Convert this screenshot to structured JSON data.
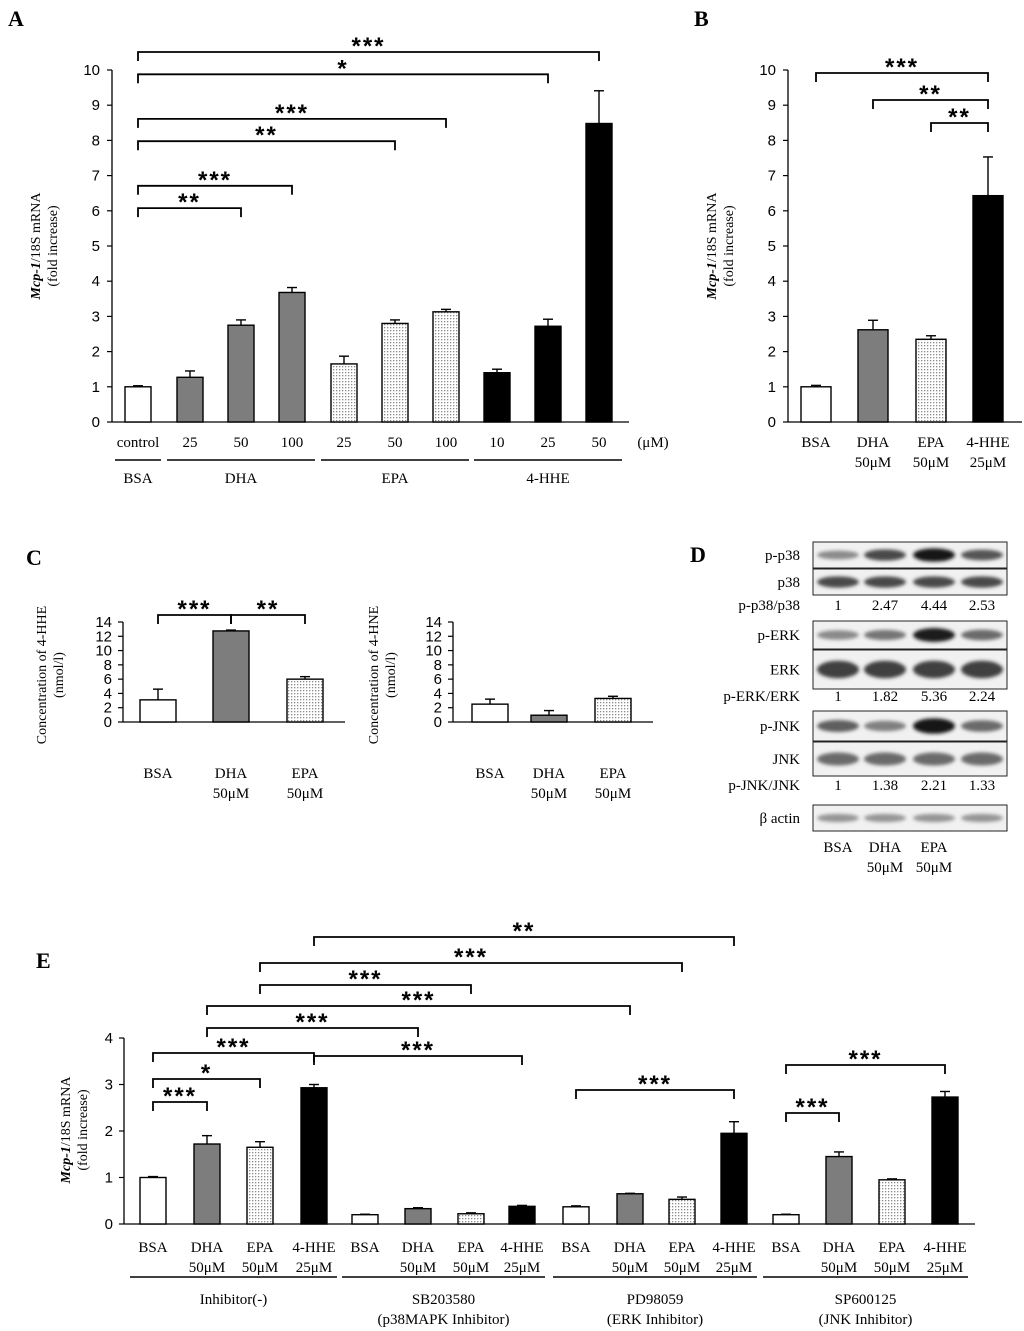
{
  "figure": {
    "panel_labels": [
      "A",
      "B",
      "C",
      "D",
      "E"
    ],
    "ylabel_mcp": [
      "Mcp-1",
      "/18S mRNA",
      "(fold increase)"
    ],
    "unit_uM": "(μM)"
  },
  "chart_data": [
    {
      "id": "A",
      "type": "bar",
      "ylim": [
        0,
        10
      ],
      "yticks": [
        0,
        1,
        2,
        3,
        4,
        5,
        6,
        7,
        8,
        9,
        10
      ],
      "categories": [
        "control",
        "25",
        "50",
        "100",
        "25",
        "50",
        "100",
        "10",
        "25",
        "50"
      ],
      "values": [
        1.0,
        1.27,
        2.75,
        3.68,
        1.65,
        2.8,
        3.13,
        1.4,
        2.72,
        8.48
      ],
      "errors": [
        0.03,
        0.18,
        0.15,
        0.14,
        0.22,
        0.1,
        0.07,
        0.1,
        0.2,
        0.93
      ],
      "fills": [
        "white",
        "gray",
        "gray",
        "gray",
        "dot",
        "dot",
        "dot",
        "black",
        "black",
        "black"
      ],
      "groups": [
        {
          "label": "BSA",
          "from": 0,
          "to": 0
        },
        {
          "label": "DHA",
          "from": 1,
          "to": 3
        },
        {
          "label": "EPA",
          "from": 4,
          "to": 6
        },
        {
          "label": "4-HHE",
          "from": 7,
          "to": 9
        }
      ],
      "unit": "(μM)",
      "brackets": [
        {
          "from": 0,
          "to": 9,
          "stars": "***"
        },
        {
          "from": 0,
          "to": 8,
          "stars": "*"
        },
        {
          "from": 0,
          "to": 6,
          "stars": "***"
        },
        {
          "from": 0,
          "to": 5,
          "stars": "**"
        },
        {
          "from": 0,
          "to": 3,
          "stars": "***"
        },
        {
          "from": 0,
          "to": 2,
          "stars": "**"
        }
      ]
    },
    {
      "id": "B",
      "type": "bar",
      "ylim": [
        0,
        10
      ],
      "yticks": [
        0,
        1,
        2,
        3,
        4,
        5,
        6,
        7,
        8,
        9,
        10
      ],
      "categories": [
        [
          "BSA"
        ],
        [
          "DHA",
          "50μM"
        ],
        [
          "EPA",
          "50μM"
        ],
        [
          "4-HHE",
          "25μM"
        ]
      ],
      "values": [
        1.0,
        2.62,
        2.35,
        6.43
      ],
      "errors": [
        0.04,
        0.27,
        0.1,
        1.1
      ],
      "fills": [
        "white",
        "gray",
        "dot",
        "black"
      ],
      "brackets": [
        {
          "from": 0,
          "to": 3,
          "stars": "***"
        },
        {
          "from": 1,
          "to": 3,
          "stars": "**"
        },
        {
          "from": 2,
          "to": 3,
          "stars": "**"
        }
      ]
    },
    {
      "id": "C-left",
      "type": "bar",
      "ylabel": [
        "Concentration of 4-HHE",
        "(nmol/l)"
      ],
      "ylim": [
        0,
        14
      ],
      "yticks": [
        0,
        2,
        4,
        6,
        8,
        10,
        12,
        14
      ],
      "categories": [
        [
          "BSA"
        ],
        [
          "DHA",
          "50μM"
        ],
        [
          "EPA",
          "50μM"
        ]
      ],
      "values": [
        3.1,
        12.75,
        6.0
      ],
      "errors": [
        1.5,
        0.12,
        0.35
      ],
      "fills": [
        "white",
        "gray",
        "dot"
      ],
      "brackets": [
        {
          "from": 0,
          "to": 1,
          "stars": "***"
        },
        {
          "from": 1,
          "to": 2,
          "stars": "**"
        }
      ]
    },
    {
      "id": "C-right",
      "type": "bar",
      "ylabel": [
        "Concentration of 4-HNE",
        "(nmol/l)"
      ],
      "ylim": [
        0,
        14
      ],
      "yticks": [
        0,
        2,
        4,
        6,
        8,
        10,
        12,
        14
      ],
      "categories": [
        [
          "BSA"
        ],
        [
          "DHA",
          "50μM"
        ],
        [
          "EPA",
          "50μM"
        ]
      ],
      "values": [
        2.5,
        0.95,
        3.3
      ],
      "errors": [
        0.7,
        0.65,
        0.3
      ],
      "fills": [
        "white",
        "gray",
        "dot"
      ],
      "brackets": []
    },
    {
      "id": "E",
      "type": "bar",
      "ylim": [
        0,
        4
      ],
      "yticks": [
        0,
        1,
        2,
        3,
        4
      ],
      "categories": [
        [
          "BSA"
        ],
        [
          "DHA",
          "50μM"
        ],
        [
          "EPA",
          "50μM"
        ],
        [
          "4-HHE",
          "25μM"
        ],
        [
          "BSA"
        ],
        [
          "DHA",
          "50μM"
        ],
        [
          "EPA",
          "50μM"
        ],
        [
          "4-HHE",
          "25μM"
        ],
        [
          "BSA"
        ],
        [
          "DHA",
          "50μM"
        ],
        [
          "EPA",
          "50μM"
        ],
        [
          "4-HHE",
          "25μM"
        ],
        [
          "BSA"
        ],
        [
          "DHA",
          "50μM"
        ],
        [
          "EPA",
          "50μM"
        ],
        [
          "4-HHE",
          "25μM"
        ]
      ],
      "values": [
        1.0,
        1.72,
        1.65,
        2.93,
        0.2,
        0.33,
        0.22,
        0.38,
        0.37,
        0.65,
        0.53,
        1.95,
        0.2,
        1.45,
        0.95,
        2.73
      ],
      "errors": [
        0.02,
        0.18,
        0.12,
        0.07,
        0.01,
        0.02,
        0.02,
        0.02,
        0.02,
        0.01,
        0.05,
        0.25,
        0.01,
        0.1,
        0.02,
        0.12
      ],
      "fills": [
        "white",
        "gray",
        "dot",
        "black",
        "white",
        "gray",
        "dot",
        "black",
        "white",
        "gray",
        "dot",
        "black",
        "white",
        "gray",
        "dot",
        "black"
      ],
      "groups": [
        {
          "label": [
            "Inhibitor(-)"
          ],
          "from": 0,
          "to": 3
        },
        {
          "label": [
            "SB203580",
            "(p38MAPK Inhibitor)"
          ],
          "from": 4,
          "to": 7
        },
        {
          "label": [
            "PD98059",
            "(ERK Inhibitor)"
          ],
          "from": 8,
          "to": 11
        },
        {
          "label": [
            "SP600125",
            "(JNK Inhibitor)"
          ],
          "from": 12,
          "to": 15
        }
      ],
      "brackets": [
        {
          "from": 3,
          "to": 11,
          "stars": "**"
        },
        {
          "from": 2,
          "to": 10,
          "stars": "***"
        },
        {
          "from": 2,
          "to": 6,
          "stars": "***"
        },
        {
          "from": 1,
          "to": 9,
          "stars": "***"
        },
        {
          "from": 1,
          "to": 5,
          "stars": "***"
        },
        {
          "from": 0,
          "to": 3,
          "stars": "***"
        },
        {
          "from": 3,
          "to": 7,
          "stars": "***"
        },
        {
          "from": 0,
          "to": 2,
          "stars": "*"
        },
        {
          "from": 0,
          "to": 1,
          "stars": "***"
        },
        {
          "from": 8,
          "to": 11,
          "stars": "***"
        },
        {
          "from": 12,
          "to": 15,
          "stars": "***"
        },
        {
          "from": 12,
          "to": 13,
          "stars": "***"
        }
      ]
    }
  ],
  "blot": {
    "id": "D",
    "lanes": [
      [
        "BSA"
      ],
      [
        "DHA",
        "50μM"
      ],
      [
        "EPA",
        "50μM"
      ],
      [
        ""
      ]
    ],
    "rows": [
      {
        "label": "p-p38",
        "type": "band",
        "intensity": [
          0.45,
          0.75,
          1.0,
          0.7
        ]
      },
      {
        "label": "p38",
        "type": "band",
        "intensity": [
          0.75,
          0.75,
          0.75,
          0.75
        ]
      },
      {
        "label": "p-p38/p38",
        "type": "ratio",
        "values": [
          "1",
          "2.47",
          "4.44",
          "2.53"
        ]
      },
      {
        "label": "p-ERK",
        "type": "band",
        "intensity": [
          0.45,
          0.55,
          0.95,
          0.6
        ]
      },
      {
        "label": "ERK",
        "type": "band",
        "intensity": [
          0.8,
          0.8,
          0.8,
          0.8
        ]
      },
      {
        "label": "p-ERK/ERK",
        "type": "ratio",
        "values": [
          "1",
          "1.82",
          "5.36",
          "2.24"
        ]
      },
      {
        "label": "p-JNK",
        "type": "band",
        "intensity": [
          0.65,
          0.5,
          1.0,
          0.6
        ]
      },
      {
        "label": "JNK",
        "type": "band",
        "intensity": [
          0.6,
          0.6,
          0.6,
          0.6
        ]
      },
      {
        "label": "p-JNK/JNK",
        "type": "ratio",
        "values": [
          "1",
          "1.38",
          "2.21",
          "1.33"
        ]
      },
      {
        "label": "β actin",
        "type": "band",
        "intensity": [
          0.4,
          0.4,
          0.4,
          0.4
        ]
      }
    ]
  },
  "colors": {
    "gray": "#7d7d7d",
    "black": "#000000",
    "white": "#ffffff",
    "dot": "#d9d9d9"
  }
}
